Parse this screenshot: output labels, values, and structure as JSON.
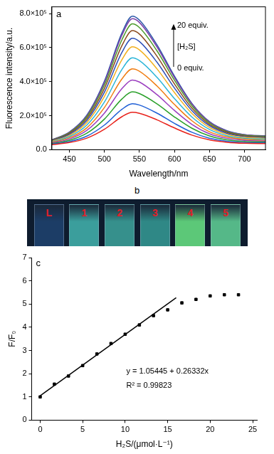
{
  "chart_data": [
    {
      "type": "line",
      "panel_label": "a",
      "x_label": "Wavelength/nm",
      "y_label": "Fluorescence intensity/a.u.",
      "annotations": [
        "20 equiv.",
        "[H₂S]",
        "0 equiv."
      ],
      "grid": false,
      "xlim": [
        425,
        730
      ],
      "xticks": [
        450,
        500,
        550,
        600,
        650,
        700
      ],
      "ylim": [
        0,
        840000
      ],
      "yticks": [
        {
          "value": 0,
          "label": "0.0"
        },
        {
          "value": 200000,
          "label": "2.0×10⁵"
        },
        {
          "value": 400000,
          "label": "4.0×10⁵"
        },
        {
          "value": 600000,
          "label": "6.0×10⁵"
        },
        {
          "value": 800000,
          "label": "8.0×10⁵"
        }
      ],
      "x": [
        425,
        450,
        475,
        500,
        525,
        540,
        550,
        575,
        600,
        625,
        650,
        675,
        700,
        730
      ],
      "series": [
        {
          "color": "#e8211a",
          "values": [
            30000,
            42000,
            68000,
            120000,
            194000,
            220000,
            214000,
            176000,
            128000,
            86000,
            58000,
            44000,
            38000,
            36000
          ]
        },
        {
          "color": "#1f5fd6",
          "values": [
            32500,
            47500,
            80000,
            145000,
            237500,
            270000,
            262500,
            215000,
            155000,
            102500,
            67500,
            50000,
            42500,
            40000
          ]
        },
        {
          "color": "#2aa02a",
          "values": [
            36000,
            55000,
            97000,
            180000,
            298000,
            340000,
            330000,
            270000,
            193000,
            126000,
            81000,
            58000,
            49000,
            46000
          ]
        },
        {
          "color": "#9b3fc0",
          "values": [
            39500,
            63000,
            114000,
            215000,
            359000,
            410000,
            398000,
            324000,
            231000,
            149000,
            94000,
            67000,
            55000,
            51000
          ]
        },
        {
          "color": "#f07d12",
          "values": [
            43000,
            70000,
            129000,
            248000,
            416000,
            475000,
            461000,
            375000,
            266000,
            170000,
            106000,
            75000,
            61000,
            56000
          ]
        },
        {
          "color": "#2bb5d8",
          "values": [
            46000,
            77000,
            145000,
            280000,
            472000,
            540000,
            524000,
            426000,
            301000,
            192000,
            119000,
            82000,
            67000,
            62000
          ]
        },
        {
          "color": "#f2b01e",
          "values": [
            49000,
            84000,
            160000,
            313000,
            529000,
            605000,
            587000,
            476000,
            336000,
            213000,
            131000,
            90000,
            73000,
            67000
          ]
        },
        {
          "color": "#2d4fb8",
          "values": [
            52000,
            90000,
            172000,
            338000,
            572000,
            655000,
            636000,
            515000,
            363000,
            230000,
            141000,
            96000,
            77000,
            71000
          ]
        },
        {
          "color": "#8b4a1e",
          "values": [
            54000,
            95000,
            183000,
            360000,
            612000,
            700000,
            680000,
            550000,
            387000,
            244000,
            149000,
            102000,
            81000,
            74000
          ]
        },
        {
          "color": "#4c9a2a",
          "values": [
            56000,
            99000,
            193000,
            380000,
            646000,
            740000,
            718000,
            582000,
            409000,
            258000,
            157000,
            106000,
            85000,
            78000
          ]
        },
        {
          "color": "#7a3fa8",
          "values": [
            58000,
            103000,
            200000,
            395000,
            673000,
            770000,
            748000,
            605000,
            425000,
            268000,
            163000,
            110000,
            88000,
            80000
          ]
        },
        {
          "color": "#2a56a8",
          "values": [
            58000,
            104000,
            204000,
            403000,
            686000,
            785000,
            762000,
            617000,
            433000,
            272000,
            165000,
            112000,
            89000,
            81000
          ]
        }
      ]
    },
    {
      "type": "scatter",
      "panel_label": "c",
      "x_label": "H₂S/(μmol·L⁻¹)",
      "y_label": "F/F₀",
      "annotations": [
        "y = 1.05445 + 0.26332x",
        "R² = 0.99823"
      ],
      "grid": false,
      "xlim": [
        -1,
        25.5
      ],
      "xticks": [
        0,
        5,
        10,
        15,
        20,
        25
      ],
      "ylim": [
        0,
        7
      ],
      "yticks": [
        0,
        1,
        2,
        3,
        4,
        5,
        6,
        7
      ],
      "series": [
        {
          "type": "scatter",
          "marker": "square",
          "color": "#000000",
          "x": [
            0,
            1.67,
            3.33,
            5,
            6.67,
            8.33,
            10,
            11.67,
            13.33,
            15,
            16.67,
            18.33,
            20,
            21.67,
            23.33
          ],
          "values": [
            1.0,
            1.55,
            1.9,
            2.35,
            2.85,
            3.3,
            3.7,
            4.1,
            4.5,
            4.75,
            5.05,
            5.2,
            5.35,
            5.4,
            5.4
          ]
        },
        {
          "type": "line",
          "marker": "none",
          "color": "#000000",
          "x": [
            0,
            16
          ],
          "values": [
            1.05,
            5.27
          ]
        }
      ]
    }
  ],
  "panel_b": {
    "panel_label": "b",
    "cuvettes": [
      {
        "label": "L",
        "color": "#1c3d66"
      },
      {
        "label": "1",
        "color": "#3b9e9c"
      },
      {
        "label": "2",
        "color": "#36908c"
      },
      {
        "label": "3",
        "color": "#2f8886"
      },
      {
        "label": "4",
        "color": "#5cc878"
      },
      {
        "label": "5",
        "color": "#55b888"
      }
    ]
  }
}
